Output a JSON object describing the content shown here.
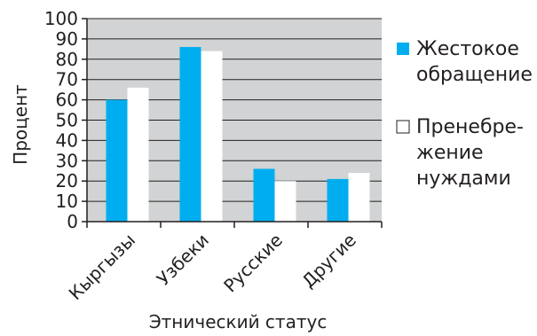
{
  "chart_data": {
    "type": "bar",
    "categories": [
      "Кыргызы",
      "Узбеки",
      "Русские",
      "Другие"
    ],
    "series": [
      {
        "name": "Жестокое обращение",
        "name_lines": [
          "Жестокое",
          "обращение"
        ],
        "values": [
          60,
          86,
          26,
          21
        ]
      },
      {
        "name": "Пренебрежение нуждами",
        "name_lines": [
          "Пренебре-",
          "жение",
          "нуждами"
        ],
        "values": [
          66,
          84,
          20,
          24
        ]
      }
    ],
    "xlabel": "Этнический статус",
    "ylabel": "Процент",
    "ylim": [
      0,
      100
    ],
    "yticks": [
      0,
      10,
      20,
      30,
      40,
      50,
      60,
      70,
      80,
      90,
      100
    ],
    "grid": true,
    "legend": "right"
  },
  "colors": {
    "plot_background": "#d1d3d4",
    "series": [
      "#00aeef",
      "#ffffff"
    ],
    "axis": "#231f20"
  }
}
